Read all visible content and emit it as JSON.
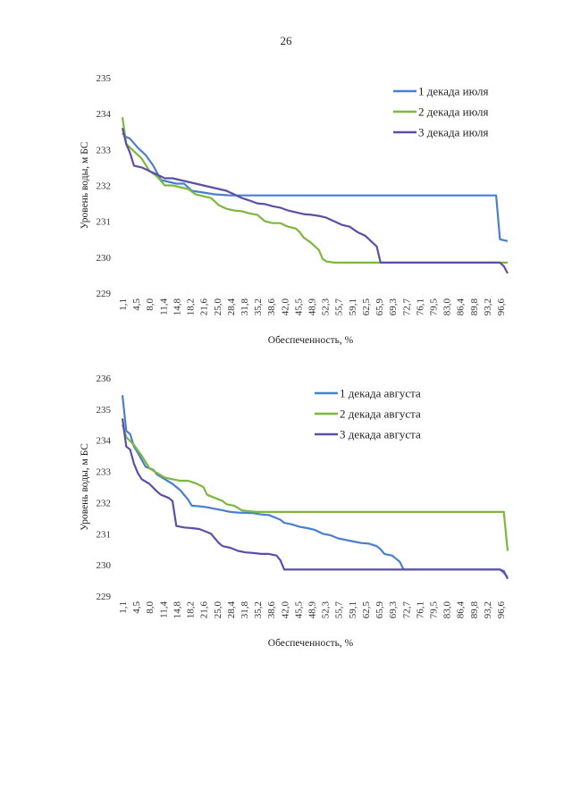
{
  "page_number": "26",
  "chart_data": [
    {
      "type": "line",
      "xlabel": "Обеспеченность, %",
      "ylabel": "Уровень воды, м БС",
      "ylim": [
        229,
        235
      ],
      "yticks": [
        "229",
        "230",
        "231",
        "232",
        "233",
        "234",
        "235"
      ],
      "xticks": [
        "1,1",
        "4,5",
        "8,0",
        "11,4",
        "14,8",
        "18,2",
        "21,6",
        "25,0",
        "28,4",
        "31,8",
        "35,2",
        "38,6",
        "42,0",
        "45,5",
        "48,9",
        "52,3",
        "55,7",
        "59,1",
        "62,5",
        "65,9",
        "69,3",
        "72,7",
        "76,1",
        "79,5",
        "83,0",
        "86,4",
        "89,8",
        "93,2",
        "96,6"
      ],
      "legend_position": "top-right",
      "series": [
        {
          "name": "1 декада июля",
          "color": "#4a7fcf",
          "points": [
            [
              0,
              233.45
            ],
            [
              1,
              233.35
            ],
            [
              2,
              233.3
            ],
            [
              4,
              233.05
            ],
            [
              6,
              232.85
            ],
            [
              8,
              232.55
            ],
            [
              10,
              232.15
            ],
            [
              14,
              232.05
            ],
            [
              16,
              232.05
            ],
            [
              18,
              231.85
            ],
            [
              21,
              231.8
            ],
            [
              24,
              231.75
            ],
            [
              28,
              231.72
            ],
            [
              40,
              231.72
            ],
            [
              60,
              231.72
            ],
            [
              97,
              231.72
            ],
            [
              98,
              230.5
            ],
            [
              100,
              230.45
            ]
          ]
        },
        {
          "name": "2 декада июля",
          "color": "#7db83e",
          "points": [
            [
              0,
              233.9
            ],
            [
              1,
              233.15
            ],
            [
              3,
              232.95
            ],
            [
              5,
              232.75
            ],
            [
              7,
              232.4
            ],
            [
              9,
              232.25
            ],
            [
              11,
              232.0
            ],
            [
              13,
              232.0
            ],
            [
              15,
              231.95
            ],
            [
              17,
              231.9
            ],
            [
              19,
              231.75
            ],
            [
              21,
              231.7
            ],
            [
              23,
              231.65
            ],
            [
              25,
              231.45
            ],
            [
              27,
              231.35
            ],
            [
              29,
              231.3
            ],
            [
              31,
              231.28
            ],
            [
              33,
              231.22
            ],
            [
              35,
              231.18
            ],
            [
              37,
              231.0
            ],
            [
              39,
              230.95
            ],
            [
              41,
              230.95
            ],
            [
              43,
              230.85
            ],
            [
              45,
              230.8
            ],
            [
              46,
              230.7
            ],
            [
              47,
              230.55
            ],
            [
              49,
              230.4
            ],
            [
              51,
              230.2
            ],
            [
              52,
              229.95
            ],
            [
              53,
              229.88
            ],
            [
              55,
              229.85
            ],
            [
              70,
              229.85
            ],
            [
              100,
              229.85
            ]
          ]
        },
        {
          "name": "3 декада июля",
          "color": "#5b4fa8",
          "points": [
            [
              0,
              233.6
            ],
            [
              1,
              233.15
            ],
            [
              2,
              232.9
            ],
            [
              3,
              232.55
            ],
            [
              5,
              232.5
            ],
            [
              7,
              232.4
            ],
            [
              9,
              232.3
            ],
            [
              11,
              232.2
            ],
            [
              13,
              232.2
            ],
            [
              15,
              232.15
            ],
            [
              17,
              232.1
            ],
            [
              19,
              232.05
            ],
            [
              21,
              232.0
            ],
            [
              23,
              231.95
            ],
            [
              25,
              231.9
            ],
            [
              27,
              231.85
            ],
            [
              29,
              231.75
            ],
            [
              31,
              231.65
            ],
            [
              33,
              231.58
            ],
            [
              35,
              231.5
            ],
            [
              37,
              231.48
            ],
            [
              39,
              231.42
            ],
            [
              41,
              231.38
            ],
            [
              43,
              231.3
            ],
            [
              45,
              231.25
            ],
            [
              47,
              231.2
            ],
            [
              49,
              231.18
            ],
            [
              51,
              231.15
            ],
            [
              53,
              231.1
            ],
            [
              55,
              231.0
            ],
            [
              57,
              230.9
            ],
            [
              59,
              230.85
            ],
            [
              61,
              230.7
            ],
            [
              63,
              230.6
            ],
            [
              65,
              230.4
            ],
            [
              66,
              230.3
            ],
            [
              67,
              229.85
            ],
            [
              70,
              229.85
            ],
            [
              85,
              229.85
            ],
            [
              98,
              229.85
            ],
            [
              99,
              229.75
            ],
            [
              100,
              229.55
            ]
          ]
        }
      ]
    },
    {
      "type": "line",
      "xlabel": "Обеспеченность, %",
      "ylabel": "Уровень воды, м БС",
      "ylim": [
        229,
        236
      ],
      "yticks": [
        "229",
        "230",
        "231",
        "232",
        "233",
        "234",
        "235",
        "236"
      ],
      "xticks": [
        "1,1",
        "4,5",
        "8,0",
        "11,4",
        "14,8",
        "18,2",
        "21,6",
        "25,0",
        "28,4",
        "31,8",
        "35,2",
        "38,6",
        "42,0",
        "45,5",
        "48,9",
        "52,3",
        "55,7",
        "59,1",
        "62,5",
        "65,9",
        "69,3",
        "72,7",
        "76,1",
        "79,5",
        "83,0",
        "86,4",
        "89,8",
        "93,2",
        "96,6"
      ],
      "legend_position": "top-right",
      "series": [
        {
          "name": "1 декада августа",
          "color": "#4a7fcf",
          "points": [
            [
              0,
              235.45
            ],
            [
              1,
              234.3
            ],
            [
              2,
              234.2
            ],
            [
              3,
              233.8
            ],
            [
              4,
              233.6
            ],
            [
              6,
              233.15
            ],
            [
              8,
              233.05
            ],
            [
              9,
              232.9
            ],
            [
              11,
              232.75
            ],
            [
              13,
              232.6
            ],
            [
              15,
              232.4
            ],
            [
              17,
              232.1
            ],
            [
              18,
              231.9
            ],
            [
              20,
              231.88
            ],
            [
              22,
              231.85
            ],
            [
              24,
              231.8
            ],
            [
              26,
              231.75
            ],
            [
              28,
              231.7
            ],
            [
              30,
              231.68
            ],
            [
              32,
              231.67
            ],
            [
              34,
              231.66
            ],
            [
              36,
              231.62
            ],
            [
              38,
              231.6
            ],
            [
              40,
              231.5
            ],
            [
              41,
              231.45
            ],
            [
              42,
              231.35
            ],
            [
              44,
              231.3
            ],
            [
              46,
              231.22
            ],
            [
              48,
              231.18
            ],
            [
              50,
              231.12
            ],
            [
              52,
              231.0
            ],
            [
              54,
              230.95
            ],
            [
              56,
              230.85
            ],
            [
              58,
              230.8
            ],
            [
              60,
              230.75
            ],
            [
              62,
              230.7
            ],
            [
              64,
              230.68
            ],
            [
              66,
              230.6
            ],
            [
              67,
              230.5
            ],
            [
              68,
              230.35
            ],
            [
              70,
              230.3
            ],
            [
              72,
              230.1
            ],
            [
              73,
              229.85
            ],
            [
              80,
              229.85
            ],
            [
              98,
              229.85
            ],
            [
              99,
              229.75
            ],
            [
              100,
              229.6
            ]
          ]
        },
        {
          "name": "2 декада августа",
          "color": "#7db83e",
          "points": [
            [
              0,
              234.5
            ],
            [
              1,
              234.1
            ],
            [
              3,
              233.85
            ],
            [
              5,
              233.5
            ],
            [
              7,
              233.1
            ],
            [
              9,
              232.95
            ],
            [
              11,
              232.8
            ],
            [
              13,
              232.75
            ],
            [
              15,
              232.7
            ],
            [
              17,
              232.7
            ],
            [
              19,
              232.62
            ],
            [
              21,
              232.5
            ],
            [
              22,
              232.25
            ],
            [
              24,
              232.15
            ],
            [
              26,
              232.05
            ],
            [
              27,
              231.95
            ],
            [
              29,
              231.9
            ],
            [
              31,
              231.75
            ],
            [
              33,
              231.72
            ],
            [
              35,
              231.7
            ],
            [
              40,
              231.7
            ],
            [
              60,
              231.7
            ],
            [
              99,
              231.7
            ],
            [
              100,
              230.45
            ]
          ]
        },
        {
          "name": "3 декада августа",
          "color": "#5b4fa8",
          "points": [
            [
              0,
              234.7
            ],
            [
              1,
              233.8
            ],
            [
              2,
              233.7
            ],
            [
              3,
              233.25
            ],
            [
              4,
              232.95
            ],
            [
              5,
              232.75
            ],
            [
              7,
              232.6
            ],
            [
              9,
              232.35
            ],
            [
              10,
              232.25
            ],
            [
              12,
              232.15
            ],
            [
              13,
              232.05
            ],
            [
              14,
              231.25
            ],
            [
              16,
              231.2
            ],
            [
              18,
              231.18
            ],
            [
              20,
              231.15
            ],
            [
              22,
              231.05
            ],
            [
              23,
              231.0
            ],
            [
              25,
              230.7
            ],
            [
              26,
              230.6
            ],
            [
              28,
              230.55
            ],
            [
              30,
              230.45
            ],
            [
              32,
              230.4
            ],
            [
              34,
              230.38
            ],
            [
              36,
              230.35
            ],
            [
              38,
              230.35
            ],
            [
              40,
              230.3
            ],
            [
              41,
              230.15
            ],
            [
              42,
              229.85
            ],
            [
              50,
              229.85
            ],
            [
              70,
              229.85
            ],
            [
              98,
              229.85
            ],
            [
              99,
              229.8
            ],
            [
              100,
              229.55
            ]
          ]
        }
      ]
    }
  ]
}
